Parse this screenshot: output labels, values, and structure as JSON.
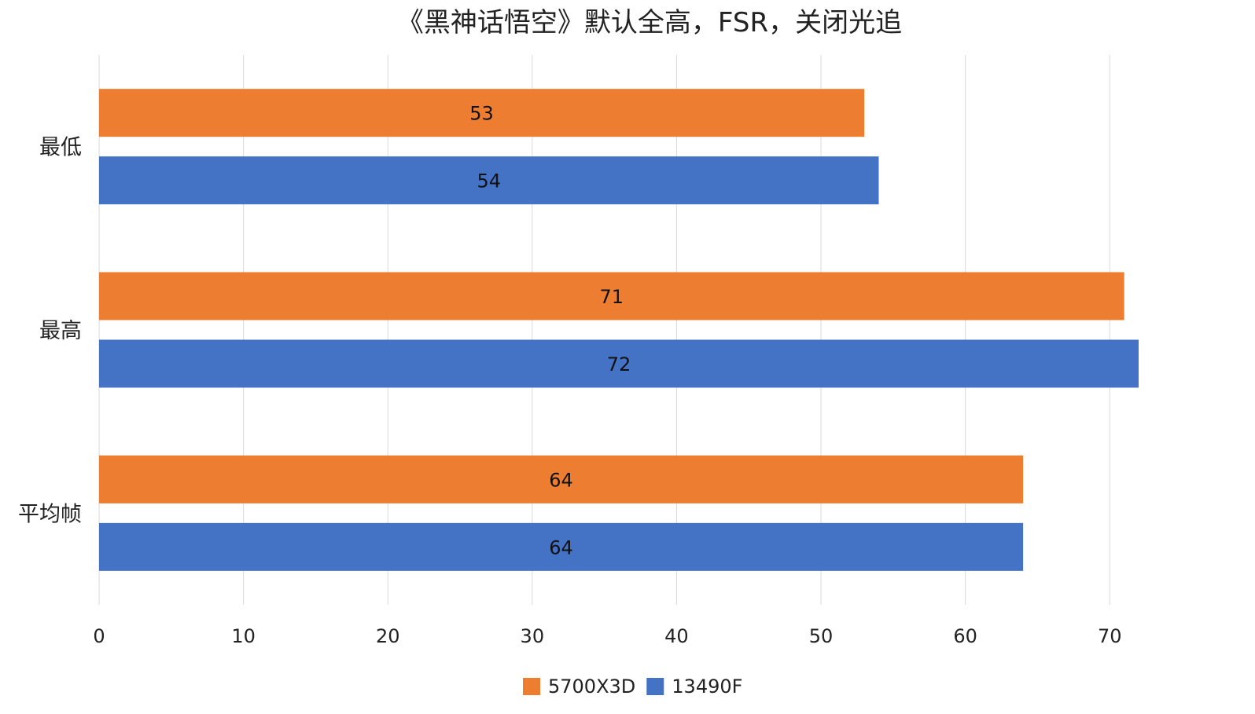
{
  "chart_data": {
    "type": "bar",
    "orientation": "horizontal",
    "title": "《黑神话悟空》默认全高，FSR，关闭光追",
    "categories": [
      "最低",
      "最高",
      "平均帧"
    ],
    "series": [
      {
        "name": "5700X3D",
        "color": "#ED7D31",
        "values": [
          53,
          71,
          64
        ]
      },
      {
        "name": "13490F",
        "color": "#4472C4",
        "values": [
          54,
          72,
          64
        ]
      }
    ],
    "xlim": [
      0,
      72
    ],
    "xticks": [
      0,
      10,
      20,
      30,
      40,
      50,
      60,
      70
    ],
    "grid": true,
    "legend_position": "bottom",
    "data_labels": true
  }
}
